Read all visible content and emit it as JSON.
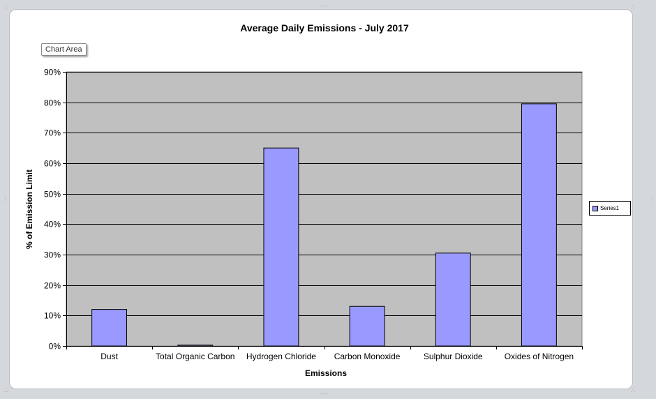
{
  "chart_data": {
    "type": "bar",
    "title": "Average Daily Emissions - July 2017",
    "xlabel": "Emissions",
    "ylabel": "% of Emission Limit",
    "categories": [
      "Dust",
      "Total Organic Carbon",
      "Hydrogen Chloride",
      "Carbon Monoxide",
      "Sulphur Dioxide",
      "Oxides of Nitrogen"
    ],
    "series": [
      {
        "name": "Series1",
        "values": [
          12,
          0.3,
          65,
          13,
          30.5,
          79.5
        ]
      }
    ],
    "ylim": [
      0,
      90
    ],
    "yticks": [
      0,
      10,
      20,
      30,
      40,
      50,
      60,
      70,
      80,
      90
    ],
    "ytick_labels": [
      "0%",
      "10%",
      "20%",
      "30%",
      "40%",
      "50%",
      "60%",
      "70%",
      "80%",
      "90%"
    ],
    "grid": true,
    "legend_position": "right",
    "colors": {
      "bar": "#9999ff",
      "plot_background": "#c0c0c0",
      "bar_border": "#000000"
    }
  },
  "ui": {
    "chart_area_tooltip": "Chart Area"
  }
}
